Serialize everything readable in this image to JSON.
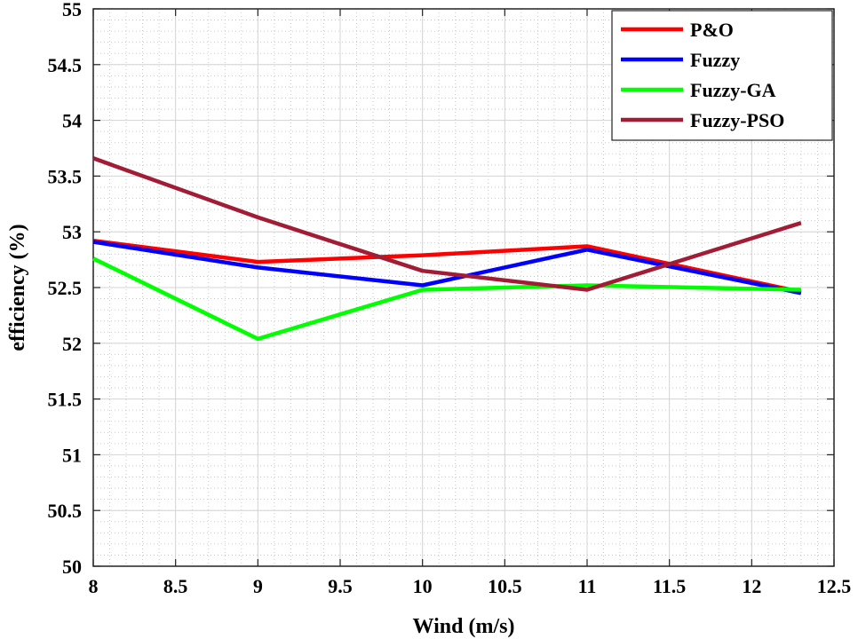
{
  "chart_data": {
    "type": "line",
    "xlabel": "Wind (m/s)",
    "ylabel": "efficiency (%)",
    "xlim": [
      8,
      12.5
    ],
    "ylim": [
      50,
      55
    ],
    "xticks": [
      8,
      8.5,
      9,
      9.5,
      10,
      10.5,
      11,
      11.5,
      12,
      12.5
    ],
    "xtick_labels": [
      "8",
      "8.5",
      "9",
      "9.5",
      "10",
      "10.5",
      "11",
      "11.5",
      "12",
      "12.5"
    ],
    "yticks": [
      50,
      50.5,
      51,
      51.5,
      52,
      52.5,
      53,
      53.5,
      54,
      54.5,
      55
    ],
    "ytick_labels": [
      "50",
      "50.5",
      "51",
      "51.5",
      "52",
      "52.5",
      "53",
      "53.5",
      "54",
      "54.5",
      "55"
    ],
    "grid": true,
    "minor_grid": true,
    "legend_position": "top-right",
    "x": [
      8,
      9,
      10,
      11,
      12.3
    ],
    "series": [
      {
        "name": "P&O",
        "color": "#ff0000",
        "values": [
          52.92,
          52.73,
          52.79,
          52.87,
          52.46
        ]
      },
      {
        "name": "Fuzzy",
        "color": "#0000ff",
        "values": [
          52.91,
          52.68,
          52.52,
          52.84,
          52.45
        ]
      },
      {
        "name": "Fuzzy-GA",
        "color": "#00ff00",
        "values": [
          52.76,
          52.04,
          52.48,
          52.52,
          52.48
        ]
      },
      {
        "name": "Fuzzy-PSO",
        "color": "#a21c35",
        "values": [
          53.66,
          53.13,
          52.65,
          52.48,
          53.08
        ]
      }
    ]
  }
}
